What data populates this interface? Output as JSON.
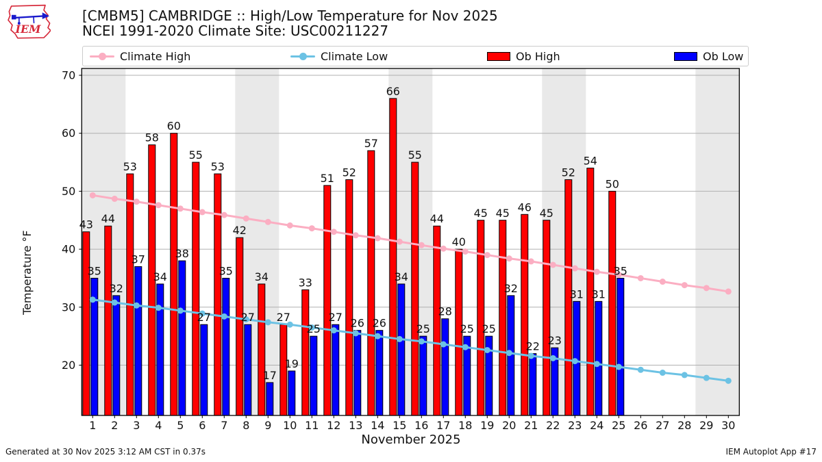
{
  "header": {
    "title_line1": "[CMBM5] CAMBRIDGE :: High/Low Temperature for Nov 2025",
    "title_line2": "NCEI 1991-2020 Climate Site: USC00211227",
    "logo_text": "IEM"
  },
  "legend": {
    "items": [
      {
        "label": "Climate High",
        "marker": "line",
        "color": "#fbaec2"
      },
      {
        "label": "Climate Low",
        "marker": "line",
        "color": "#6cc2e4"
      },
      {
        "label": "Ob High",
        "marker": "rect",
        "color": "#ff0000"
      },
      {
        "label": "Ob Low",
        "marker": "rect",
        "color": "#0000ff"
      }
    ]
  },
  "colors": {
    "ob_high": "#ff0000",
    "ob_low": "#0000ff",
    "climate_high": "#fbaec2",
    "climate_low": "#6cc2e4",
    "weekend_band": "#e9e9e9",
    "grid": "#b0b0b0",
    "spine": "#000000",
    "logo_red": "#d6293a",
    "logo_blue": "#1a1acc"
  },
  "footer": {
    "left": "Generated at 30 Nov 2025 3:12 AM CST in 0.37s",
    "right": "IEM Autoplot App #17"
  },
  "chart_data": {
    "type": "bar",
    "title": "[CMBM5] CAMBRIDGE :: High/Low Temperature for Nov 2025",
    "subtitle": "NCEI 1991-2020 Climate Site: USC00211227",
    "xlabel": "November 2025",
    "ylabel": "Temperature °F",
    "ylim": [
      11.3,
      71.2
    ],
    "yticks": [
      20,
      30,
      40,
      50,
      60,
      70
    ],
    "grid": true,
    "legend_position": "top",
    "days": [
      1,
      2,
      3,
      4,
      5,
      6,
      7,
      8,
      9,
      10,
      11,
      12,
      13,
      14,
      15,
      16,
      17,
      18,
      19,
      20,
      21,
      22,
      23,
      24,
      25,
      26,
      27,
      28,
      29,
      30
    ],
    "weekend_bands": [
      [
        1,
        2
      ],
      [
        8,
        9
      ],
      [
        15,
        16
      ],
      [
        22,
        23
      ],
      [
        29,
        30
      ]
    ],
    "series": [
      {
        "name": "Ob High",
        "type": "bar",
        "color": "#ff0000",
        "values": [
          43,
          44,
          53,
          58,
          60,
          55,
          53,
          42,
          34,
          27,
          33,
          51,
          52,
          57,
          66,
          55,
          44,
          40,
          45,
          45,
          46,
          45,
          52,
          54,
          50,
          null,
          null,
          null,
          null,
          null
        ]
      },
      {
        "name": "Ob Low",
        "type": "bar",
        "color": "#0000ff",
        "values": [
          35,
          32,
          37,
          34,
          38,
          27,
          35,
          27,
          17,
          19,
          25,
          27,
          26,
          26,
          34,
          25,
          28,
          25,
          25,
          32,
          22,
          23,
          31,
          31,
          35,
          null,
          null,
          null,
          null,
          null
        ]
      },
      {
        "name": "Climate High",
        "type": "line",
        "color": "#fbaec2",
        "values": [
          49.3,
          48.7,
          48.2,
          47.6,
          47.0,
          46.4,
          45.9,
          45.3,
          44.7,
          44.1,
          43.6,
          43.0,
          42.4,
          41.9,
          41.3,
          40.7,
          40.1,
          39.6,
          39.0,
          38.4,
          37.9,
          37.3,
          36.7,
          36.1,
          35.6,
          35.0,
          34.4,
          33.8,
          33.3,
          32.7
        ]
      },
      {
        "name": "Climate Low",
        "type": "line",
        "color": "#6cc2e4",
        "values": [
          31.3,
          30.8,
          30.3,
          29.9,
          29.4,
          28.9,
          28.4,
          27.9,
          27.4,
          27.0,
          26.5,
          26.0,
          25.5,
          25.0,
          24.5,
          24.1,
          23.6,
          23.1,
          22.6,
          22.1,
          21.6,
          21.2,
          20.7,
          20.2,
          19.7,
          19.2,
          18.7,
          18.3,
          17.8,
          17.3
        ]
      }
    ]
  }
}
